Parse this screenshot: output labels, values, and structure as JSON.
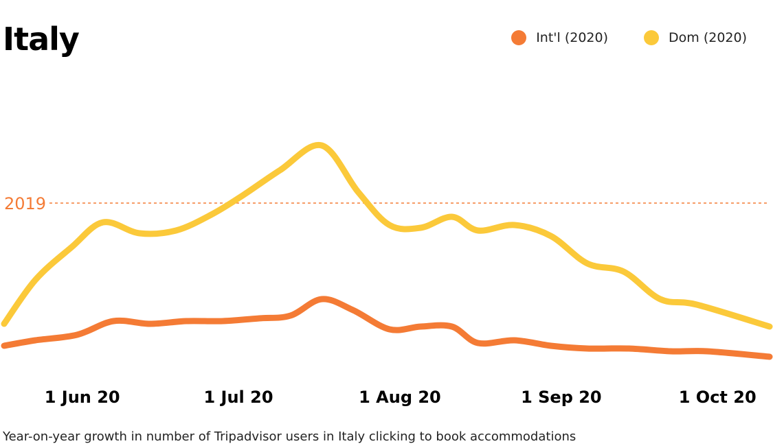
{
  "chart_data": {
    "type": "line",
    "title": "Italy",
    "caption": "Year-on-year growth in number of Tripadvisor users in Italy clicking to book accommodations",
    "x_ticks": [
      {
        "label": "1 Jun 20",
        "day": 0
      },
      {
        "label": "1 Jul 20",
        "day": 30
      },
      {
        "label": "1 Aug 20",
        "day": 61
      },
      {
        "label": "1 Sep 20",
        "day": 92
      },
      {
        "label": "1 Oct 20",
        "day": 122
      }
    ],
    "xlim": [
      -15,
      132
    ],
    "ylim": [
      0,
      100
    ],
    "reference": {
      "label": "2019",
      "value": 66
    },
    "legend_position": "top-right",
    "series": [
      {
        "name": "Int'l (2020)",
        "color": "#f47b35",
        "points": [
          [
            -15,
            14
          ],
          [
            -9,
            16
          ],
          [
            -1,
            18
          ],
          [
            6,
            23
          ],
          [
            13,
            22
          ],
          [
            20,
            23
          ],
          [
            27,
            23
          ],
          [
            34,
            24
          ],
          [
            40,
            25
          ],
          [
            46,
            31
          ],
          [
            52,
            27
          ],
          [
            59,
            20
          ],
          [
            65,
            21
          ],
          [
            71,
            21
          ],
          [
            76,
            15
          ],
          [
            83,
            16
          ],
          [
            90,
            14
          ],
          [
            97,
            13
          ],
          [
            105,
            13
          ],
          [
            113,
            12
          ],
          [
            120,
            12
          ],
          [
            132,
            10
          ]
        ]
      },
      {
        "name": "Dom (2020)",
        "color": "#fbc93a",
        "points": [
          [
            -15,
            22
          ],
          [
            -9,
            38
          ],
          [
            -2,
            50
          ],
          [
            4,
            59
          ],
          [
            11,
            55
          ],
          [
            18,
            56
          ],
          [
            25,
            62
          ],
          [
            31,
            69
          ],
          [
            38,
            78
          ],
          [
            46,
            87
          ],
          [
            53,
            70
          ],
          [
            59,
            58
          ],
          [
            65,
            57
          ],
          [
            71,
            61
          ],
          [
            76,
            56
          ],
          [
            83,
            58
          ],
          [
            90,
            54
          ],
          [
            97,
            44
          ],
          [
            104,
            41
          ],
          [
            111,
            31
          ],
          [
            118,
            29
          ],
          [
            132,
            21
          ]
        ]
      }
    ]
  }
}
